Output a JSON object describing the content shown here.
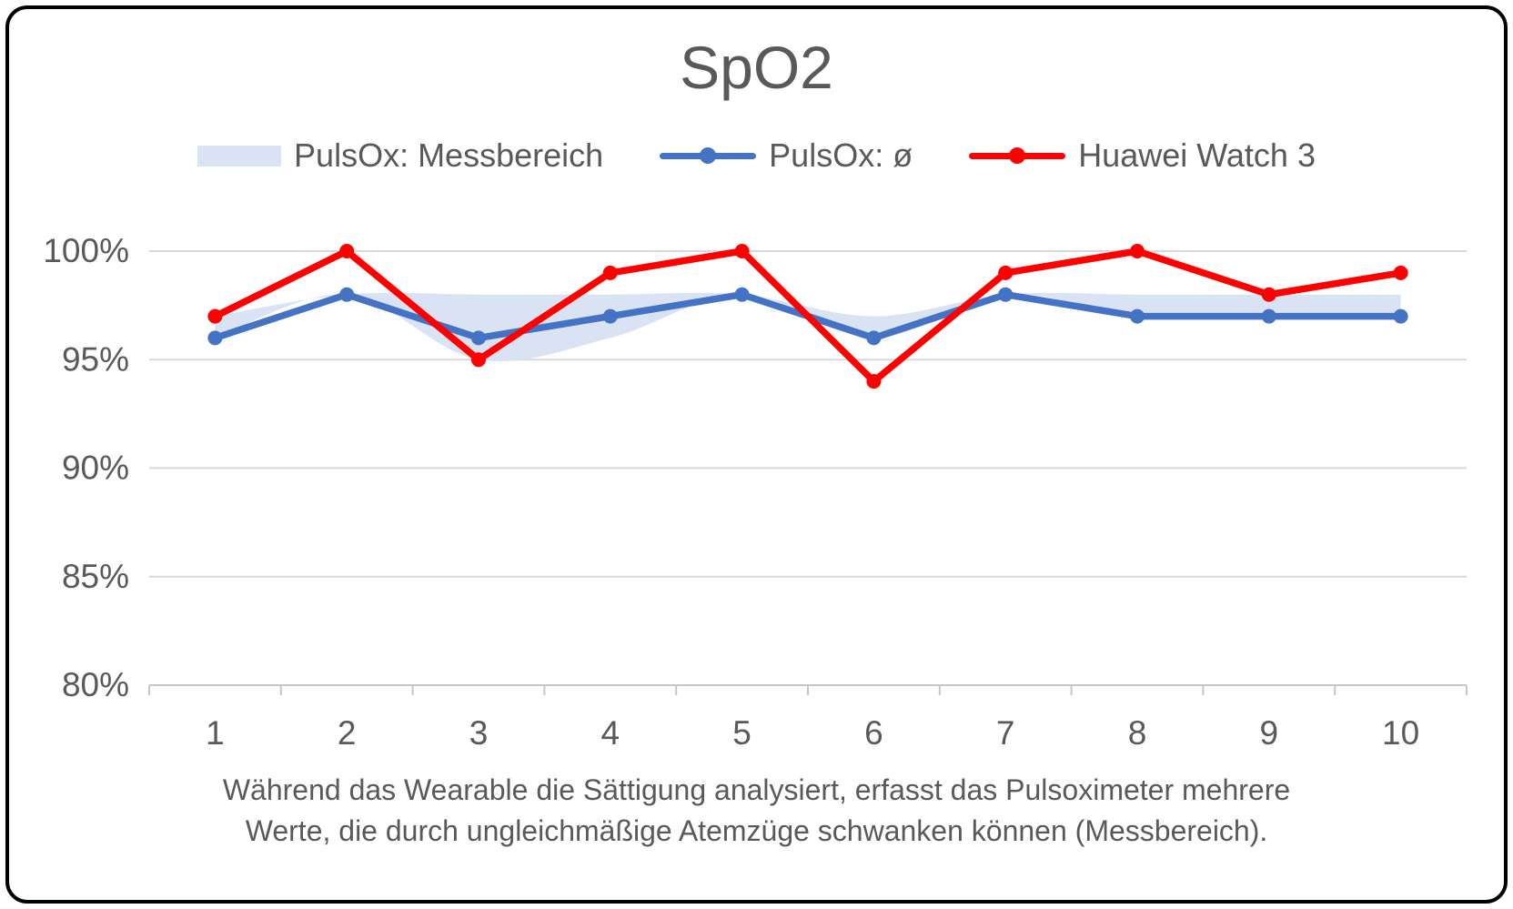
{
  "page": {
    "title": "SpO2",
    "caption_line1": "Während das Wearable die Sättigung analysiert, erfasst das Pulsoximeter mehrere",
    "caption_line2": "Werte, die durch ungleichmäßige Atemzüge schwanken können (Messbereich)."
  },
  "colors": {
    "band": "#dae3f3",
    "pulsox_blue": "#4472c4",
    "watch_red": "#ff0000",
    "grid": "#d9d9d9",
    "axis": "#c6c6c6",
    "text": "#595959",
    "border": "#000000",
    "background": "#ffffff"
  },
  "chart_data": {
    "type": "line",
    "title": "SpO2",
    "categories": [
      "1",
      "2",
      "3",
      "4",
      "5",
      "6",
      "7",
      "8",
      "9",
      "10"
    ],
    "series": [
      {
        "name": "PulsOx: Messbereich",
        "type": "band",
        "min": [
          96,
          98,
          95,
          96,
          98,
          96,
          98,
          97,
          97,
          97
        ],
        "max": [
          97,
          98,
          98,
          98,
          98,
          97,
          98,
          98,
          98,
          98
        ],
        "color": "#dae3f3"
      },
      {
        "name": "PulsOx: ø",
        "type": "line",
        "values": [
          96,
          98,
          96,
          97,
          98,
          96,
          98,
          97,
          97,
          97
        ],
        "color": "#4472c4"
      },
      {
        "name": "Huawei Watch 3",
        "type": "line",
        "values": [
          97,
          100,
          95,
          99,
          100,
          94,
          99,
          100,
          98,
          99
        ],
        "color": "#ff0000"
      }
    ],
    "y_ticks": [
      100,
      95,
      90,
      85,
      80
    ],
    "y_tick_labels": [
      "100%",
      "95%",
      "90%",
      "85%",
      "80%"
    ],
    "ylim": [
      80,
      100
    ],
    "unit": "%",
    "grid": true,
    "legend_position": "top",
    "caption": "Während das Wearable die Sättigung analysiert, erfasst das Pulsoximeter mehrere Werte, die durch ungleichmäßige Atemzüge schwanken können (Messbereich)."
  }
}
